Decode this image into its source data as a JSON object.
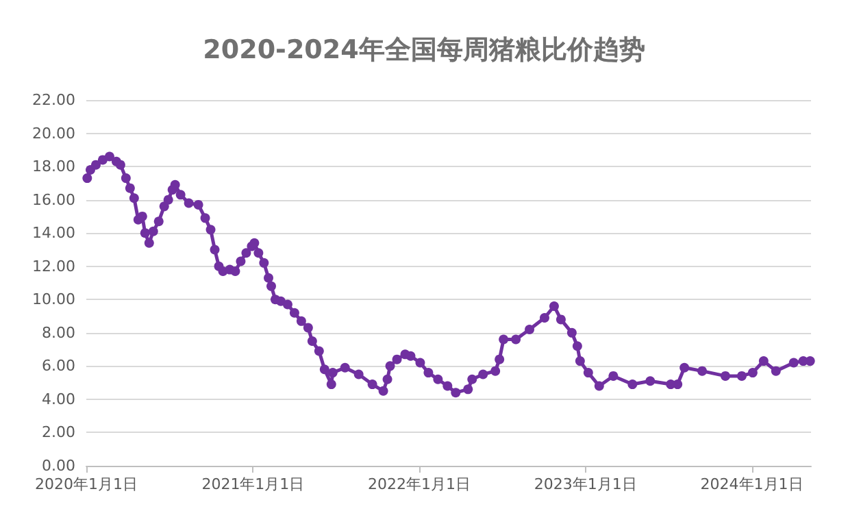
{
  "chart_data": {
    "type": "line",
    "title": "2020-2024年全国每周猪粮比价趋势",
    "x": [
      "2020-01-03",
      "2020-01-10",
      "2020-01-22",
      "2020-02-06",
      "2020-02-21",
      "2020-03-07",
      "2020-03-16",
      "2020-03-28",
      "2020-04-06",
      "2020-04-15",
      "2020-04-24",
      "2020-05-03",
      "2020-05-09",
      "2020-05-18",
      "2020-05-27",
      "2020-06-08",
      "2020-06-20",
      "2020-06-29",
      "2020-07-08",
      "2020-07-14",
      "2020-07-26",
      "2020-08-13",
      "2020-09-03",
      "2020-09-18",
      "2020-09-30",
      "2020-10-09",
      "2020-10-18",
      "2020-10-27",
      "2020-11-11",
      "2020-11-23",
      "2020-12-05",
      "2020-12-17",
      "2020-12-29",
      "2021-01-04",
      "2021-01-13",
      "2021-01-25",
      "2021-02-04",
      "2021-02-10",
      "2021-02-19",
      "2021-03-03",
      "2021-03-18",
      "2021-04-02",
      "2021-04-17",
      "2021-05-02",
      "2021-05-11",
      "2021-05-26",
      "2021-06-07",
      "2021-06-22",
      "2021-06-25",
      "2021-07-22",
      "2021-08-21",
      "2021-09-20",
      "2021-10-14",
      "2021-10-23",
      "2021-10-29",
      "2021-11-13",
      "2021-12-01",
      "2021-12-13",
      "2022-01-03",
      "2022-01-21",
      "2022-02-11",
      "2022-03-04",
      "2022-03-22",
      "2022-04-18",
      "2022-04-27",
      "2022-05-21",
      "2022-06-17",
      "2022-06-26",
      "2022-07-05",
      "2022-08-01",
      "2022-08-31",
      "2022-10-03",
      "2022-10-24",
      "2022-11-08",
      "2022-12-02",
      "2022-12-14",
      "2022-12-20",
      "2023-01-07",
      "2023-01-31",
      "2023-03-03",
      "2023-04-14",
      "2023-05-23",
      "2023-07-07",
      "2023-07-22",
      "2023-08-06",
      "2023-09-14",
      "2023-11-04",
      "2023-12-10",
      "2024-01-03",
      "2024-01-27",
      "2024-02-23",
      "2024-04-02",
      "2024-04-23",
      "2024-05-08"
    ],
    "series": [
      {
        "color": "#7030a0",
        "values": [
          17.3,
          17.8,
          18.1,
          18.4,
          18.6,
          18.3,
          18.1,
          17.3,
          16.7,
          16.1,
          14.8,
          15.0,
          14.0,
          13.4,
          14.1,
          14.7,
          15.6,
          16.0,
          16.6,
          16.9,
          16.3,
          15.8,
          15.7,
          14.9,
          14.2,
          13.0,
          12.0,
          11.7,
          11.8,
          11.7,
          12.3,
          12.8,
          13.2,
          13.4,
          12.8,
          12.2,
          11.3,
          10.8,
          10.0,
          9.9,
          9.7,
          9.2,
          8.7,
          8.3,
          7.5,
          6.9,
          5.8,
          4.9,
          5.6,
          5.9,
          5.5,
          4.9,
          4.5,
          5.2,
          6.0,
          6.4,
          6.7,
          6.6,
          6.2,
          5.6,
          5.2,
          4.8,
          4.4,
          4.6,
          5.2,
          5.5,
          5.7,
          6.4,
          7.6,
          7.6,
          8.2,
          8.9,
          9.6,
          8.8,
          8.0,
          7.2,
          6.3,
          5.6,
          4.8,
          5.4,
          4.9,
          5.1,
          4.9,
          4.9,
          5.9,
          5.7,
          5.4,
          5.4,
          5.6,
          6.3,
          5.7,
          6.2,
          6.3,
          6.3
        ]
      }
    ],
    "xlim": [
      "2020-01-01",
      "2024-05-10"
    ],
    "xticks": [
      {
        "value": "2020-01-01",
        "label": "2020年1月1日"
      },
      {
        "value": "2021-01-01",
        "label": "2021年1月1日"
      },
      {
        "value": "2022-01-01",
        "label": "2022年1月1日"
      },
      {
        "value": "2023-01-01",
        "label": "2023年1月1日"
      },
      {
        "value": "2024-01-01",
        "label": "2024年1月1日"
      }
    ],
    "ylim": [
      0,
      22
    ],
    "yticks": [
      {
        "value": 0,
        "label": "0.00"
      },
      {
        "value": 2,
        "label": "2.00"
      },
      {
        "value": 4,
        "label": "4.00"
      },
      {
        "value": 6,
        "label": "6.00"
      },
      {
        "value": 8,
        "label": "8.00"
      },
      {
        "value": 10,
        "label": "10.00"
      },
      {
        "value": 12,
        "label": "12.00"
      },
      {
        "value": 14,
        "label": "14.00"
      },
      {
        "value": 16,
        "label": "16.00"
      },
      {
        "value": 18,
        "label": "18.00"
      },
      {
        "value": 20,
        "label": "20.00"
      },
      {
        "value": 22,
        "label": "22.00"
      }
    ],
    "grid": "y",
    "marker": "circle",
    "line_style": "solid"
  }
}
